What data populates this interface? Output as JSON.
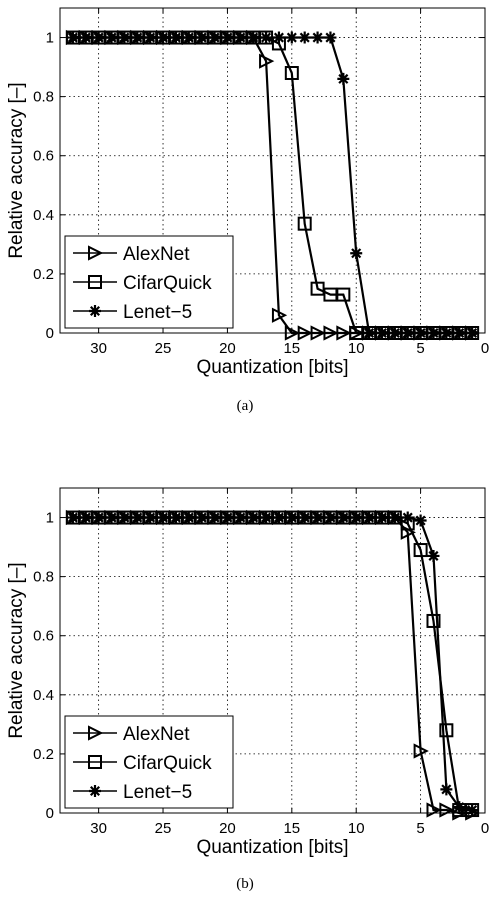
{
  "captions": {
    "a": "(a)",
    "b": "(b)"
  },
  "chart_data": [
    {
      "type": "line",
      "xlabel": "Quantization [bits]",
      "ylabel": "Relative accuracy [–]",
      "xlim": [
        33,
        0
      ],
      "ylim": [
        0,
        1.1
      ],
      "x_reversed": true,
      "xticks": [
        30,
        25,
        20,
        15,
        10,
        5,
        0
      ],
      "yticks": [
        0,
        0.2,
        0.4,
        0.6,
        0.8,
        1
      ],
      "ytick_labels": [
        "0",
        "0.2",
        "0.4",
        "0.6",
        "0.8",
        "1"
      ],
      "grid": true,
      "legend_position": "lower-left",
      "series": [
        {
          "name": "AlexNet",
          "marker": "triangle-right",
          "x": [
            32,
            31,
            30,
            29,
            28,
            27,
            26,
            25,
            24,
            23,
            22,
            21,
            20,
            19,
            18,
            17,
            16,
            15,
            14,
            13,
            12,
            11,
            10,
            9,
            8,
            7,
            6,
            5,
            4,
            3,
            2,
            1
          ],
          "y": [
            1,
            1,
            1,
            1,
            1,
            1,
            1,
            1,
            1,
            1,
            1,
            1,
            1,
            1,
            1,
            0.92,
            0.06,
            0,
            0,
            0,
            0,
            0,
            0,
            0,
            0,
            0,
            0,
            0,
            0,
            0,
            0,
            0
          ]
        },
        {
          "name": "CifarQuick",
          "marker": "square",
          "x": [
            32,
            31,
            30,
            29,
            28,
            27,
            26,
            25,
            24,
            23,
            22,
            21,
            20,
            19,
            18,
            17,
            16,
            15,
            14,
            13,
            12,
            11,
            10,
            9,
            8,
            7,
            6,
            5,
            4,
            3,
            2,
            1
          ],
          "y": [
            1,
            1,
            1,
            1,
            1,
            1,
            1,
            1,
            1,
            1,
            1,
            1,
            1,
            1,
            1,
            1,
            0.98,
            0.88,
            0.37,
            0.15,
            0.13,
            0.13,
            0,
            0,
            0,
            0,
            0,
            0,
            0,
            0,
            0,
            0
          ]
        },
        {
          "name": "Lenet−5",
          "marker": "star",
          "x": [
            32,
            31,
            30,
            29,
            28,
            27,
            26,
            25,
            24,
            23,
            22,
            21,
            20,
            19,
            18,
            17,
            16,
            15,
            14,
            13,
            12,
            11,
            10,
            9,
            8,
            7,
            6,
            5,
            4,
            3,
            2,
            1
          ],
          "y": [
            1,
            1,
            1,
            1,
            1,
            1,
            1,
            1,
            1,
            1,
            1,
            1,
            1,
            1,
            1,
            1,
            1,
            1,
            1,
            1,
            1,
            0.86,
            0.27,
            0,
            0,
            0,
            0,
            0,
            0,
            0,
            0,
            0
          ]
        }
      ]
    },
    {
      "type": "line",
      "xlabel": "Quantization [bits]",
      "ylabel": "Relative accuracy [–]",
      "xlim": [
        33,
        0
      ],
      "ylim": [
        0,
        1.1
      ],
      "x_reversed": true,
      "xticks": [
        30,
        25,
        20,
        15,
        10,
        5,
        0
      ],
      "yticks": [
        0,
        0.2,
        0.4,
        0.6,
        0.8,
        1
      ],
      "ytick_labels": [
        "0",
        "0.2",
        "0.4",
        "0.6",
        "0.8",
        "1"
      ],
      "grid": true,
      "legend_position": "lower-left",
      "series": [
        {
          "name": "AlexNet",
          "marker": "triangle-right",
          "x": [
            32,
            31,
            30,
            29,
            28,
            27,
            26,
            25,
            24,
            23,
            22,
            21,
            20,
            19,
            18,
            17,
            16,
            15,
            14,
            13,
            12,
            11,
            10,
            9,
            8,
            7,
            6,
            5,
            4,
            3,
            2,
            1
          ],
          "y": [
            1,
            1,
            1,
            1,
            1,
            1,
            1,
            1,
            1,
            1,
            1,
            1,
            1,
            1,
            1,
            1,
            1,
            1,
            1,
            1,
            1,
            1,
            1,
            1,
            1,
            1,
            0.95,
            0.21,
            0.01,
            0.01,
            0,
            0
          ]
        },
        {
          "name": "CifarQuick",
          "marker": "square",
          "x": [
            32,
            31,
            30,
            29,
            28,
            27,
            26,
            25,
            24,
            23,
            22,
            21,
            20,
            19,
            18,
            17,
            16,
            15,
            14,
            13,
            12,
            11,
            10,
            9,
            8,
            7,
            6,
            5,
            4,
            3,
            2,
            1
          ],
          "y": [
            1,
            1,
            1,
            1,
            1,
            1,
            1,
            1,
            1,
            1,
            1,
            1,
            1,
            1,
            1,
            1,
            1,
            1,
            1,
            1,
            1,
            1,
            1,
            1,
            1,
            1,
            0.98,
            0.89,
            0.65,
            0.28,
            0.01,
            0.01
          ]
        },
        {
          "name": "Lenet−5",
          "marker": "star",
          "x": [
            32,
            31,
            30,
            29,
            28,
            27,
            26,
            25,
            24,
            23,
            22,
            21,
            20,
            19,
            18,
            17,
            16,
            15,
            14,
            13,
            12,
            11,
            10,
            9,
            8,
            7,
            6,
            5,
            4,
            3,
            2,
            1
          ],
          "y": [
            1,
            1,
            1,
            1,
            1,
            1,
            1,
            1,
            1,
            1,
            1,
            1,
            1,
            1,
            1,
            1,
            1,
            1,
            1,
            1,
            1,
            1,
            1,
            1,
            1,
            1,
            1,
            0.99,
            0.87,
            0.08,
            0.02,
            0.01
          ]
        }
      ]
    }
  ]
}
